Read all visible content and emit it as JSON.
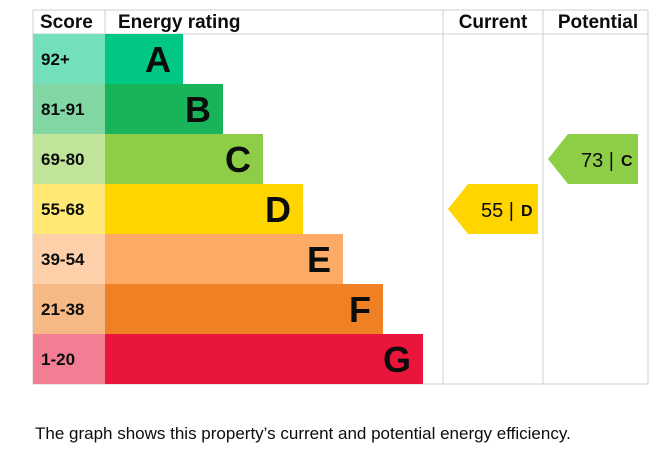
{
  "chart_data": {
    "type": "bar",
    "headers": {
      "score": "Score",
      "rating": "Energy rating",
      "current": "Current",
      "potential": "Potential"
    },
    "bands": [
      {
        "score": "92+",
        "letter": "A",
        "color": "#00c781"
      },
      {
        "score": "81-91",
        "letter": "B",
        "color": "#19b459"
      },
      {
        "score": "69-80",
        "letter": "C",
        "color": "#8dce46"
      },
      {
        "score": "55-68",
        "letter": "D",
        "color": "#ffd500"
      },
      {
        "score": "39-54",
        "letter": "E",
        "color": "#fcaa65"
      },
      {
        "score": "21-38",
        "letter": "F",
        "color": "#ef8023"
      },
      {
        "score": "1-20",
        "letter": "G",
        "color": "#e9153b"
      }
    ],
    "current": {
      "value": 55,
      "letter": "D",
      "label": "55 |",
      "color": "#ffd500"
    },
    "potential": {
      "value": 73,
      "letter": "C",
      "label": "73 |",
      "color": "#8dce46"
    }
  },
  "caption": "The graph shows this property’s current and potential energy efficiency."
}
